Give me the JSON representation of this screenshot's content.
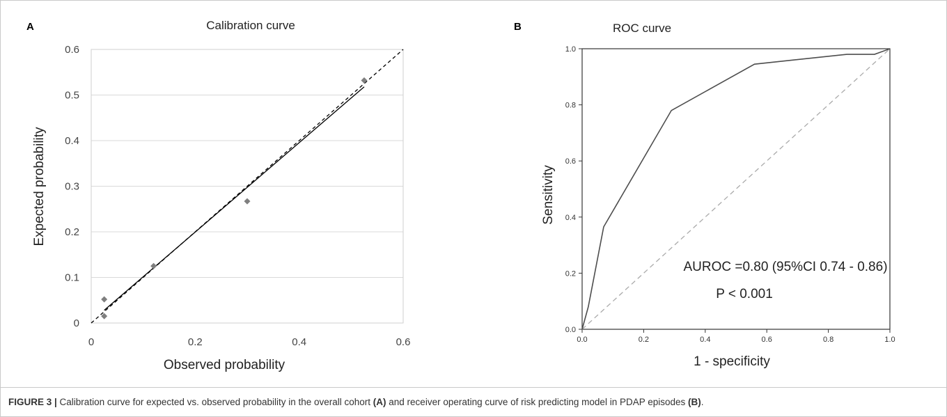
{
  "caption": {
    "label": "FIGURE 3 |",
    "text1": " Calibration curve for expected vs. observed probability in the overall cohort ",
    "ref_a": "(A)",
    "text2": " and receiver operating curve of risk predicting model in PDAP episodes ",
    "ref_b": "(B)",
    "text3": "."
  },
  "chart_data": [
    {
      "panel": "A",
      "type": "scatter",
      "title": "Calibration curve",
      "xlabel": "Observed probability",
      "ylabel": "Expected probability",
      "xlim": [
        0,
        0.6
      ],
      "ylim": [
        0,
        0.6
      ],
      "xticks": [
        "0",
        "0.2",
        "0.4",
        "0.6"
      ],
      "yticks": [
        "0",
        "0.1",
        "0.2",
        "0.3",
        "0.4",
        "0.5",
        "0.6"
      ],
      "grid": "horizontal",
      "points": [
        {
          "x": 0.025,
          "y": 0.015
        },
        {
          "x": 0.025,
          "y": 0.052
        },
        {
          "x": 0.12,
          "y": 0.125
        },
        {
          "x": 0.3,
          "y": 0.267
        },
        {
          "x": 0.525,
          "y": 0.532
        }
      ],
      "fit_line": {
        "x": [
          0.025,
          0.525
        ],
        "y": [
          0.028,
          0.518
        ]
      },
      "reference_line": {
        "x": [
          0,
          0.6
        ],
        "y": [
          0,
          0.6
        ],
        "style": "dashed"
      },
      "colors": {
        "points": "#7f7f7f",
        "fit": "#000000",
        "reference": "#000000",
        "grid": "#d9d9d9"
      }
    },
    {
      "panel": "B",
      "type": "line",
      "title": "ROC curve",
      "xlabel": "1 - specificity",
      "ylabel": "Sensitivity",
      "xlim": [
        0,
        1
      ],
      "ylim": [
        0,
        1
      ],
      "xticks": [
        "0.0",
        "0.2",
        "0.4",
        "0.6",
        "0.8",
        "1.0"
      ],
      "yticks": [
        "0.0",
        "0.2",
        "0.4",
        "0.6",
        "0.8",
        "1.0"
      ],
      "grid": "none",
      "roc": {
        "x": [
          0,
          0.02,
          0.07,
          0.29,
          0.56,
          0.86,
          0.95,
          1.0
        ],
        "y": [
          0,
          0.08,
          0.365,
          0.78,
          0.945,
          0.98,
          0.98,
          1.0
        ]
      },
      "reference_line": {
        "x": [
          0,
          1
        ],
        "y": [
          0,
          1
        ],
        "style": "dashed"
      },
      "annotations": [
        "AUROC =0.80 (95%CI 0.74 - 0.86)",
        "P < 0.001"
      ],
      "colors": {
        "roc": "#4d4d4d",
        "reference": "#aaaaaa"
      }
    }
  ]
}
